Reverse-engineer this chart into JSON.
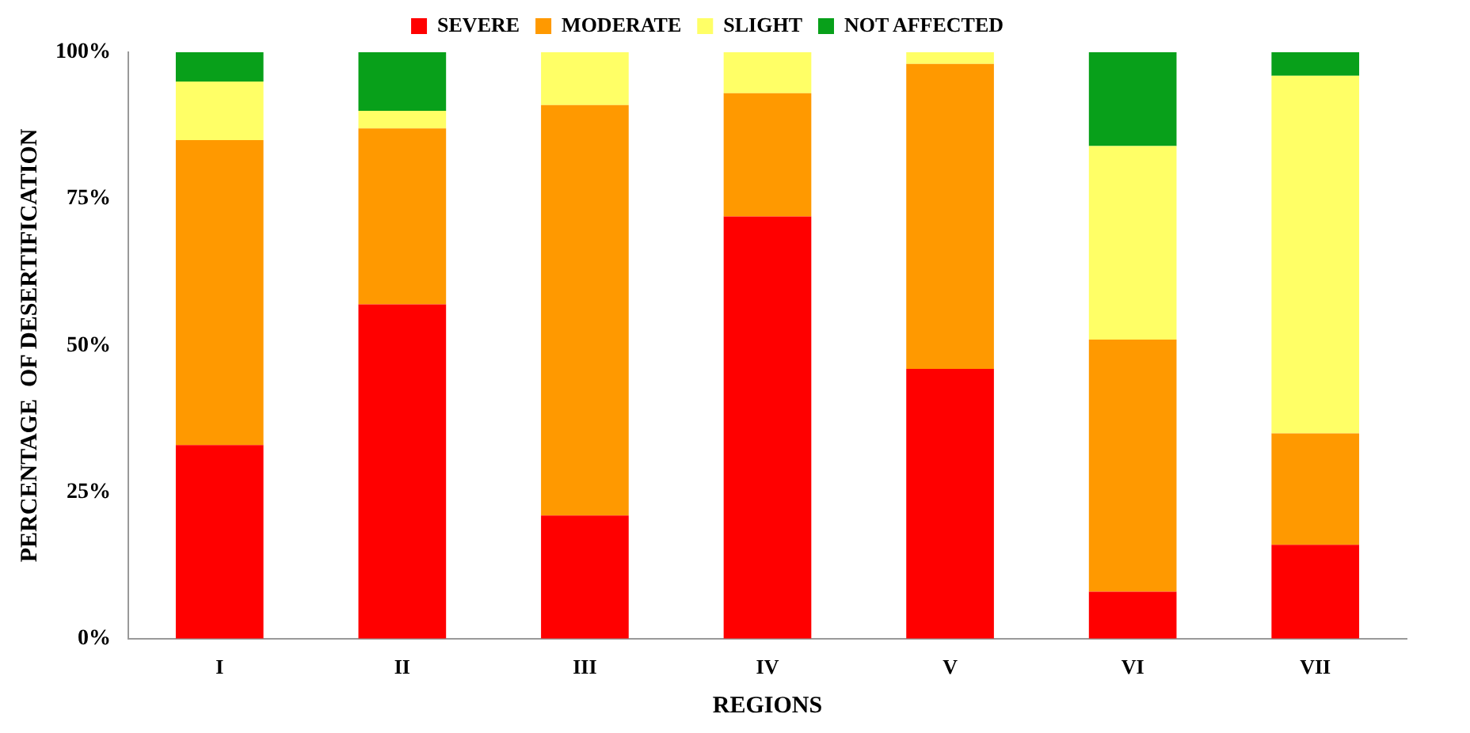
{
  "chart_data": {
    "type": "bar",
    "stacked": true,
    "xlabel": "REGIONS",
    "ylabel": "PERCENTAGE  OF DESERTIFICATION",
    "categories": [
      "I",
      "II",
      "III",
      "IV",
      "V",
      "VI",
      "VII"
    ],
    "series": [
      {
        "name": "SEVERE",
        "color": "#ff0000",
        "values": [
          33,
          57,
          21,
          72,
          46,
          8,
          16
        ]
      },
      {
        "name": "MODERATE",
        "color": "#ff9900",
        "values": [
          52,
          30,
          70,
          21,
          52,
          43,
          19
        ]
      },
      {
        "name": "SLIGHT",
        "color": "#ffff66",
        "values": [
          10,
          3,
          9,
          7,
          2,
          33,
          61
        ]
      },
      {
        "name": "NOT AFFECTED",
        "color": "#08a01a",
        "values": [
          5,
          10,
          0,
          0,
          0,
          16,
          4
        ]
      }
    ],
    "ylim": [
      0,
      100
    ],
    "yticks": [
      {
        "value": 0,
        "label": "0%"
      },
      {
        "value": 25,
        "label": "25%"
      },
      {
        "value": 50,
        "label": "50%"
      },
      {
        "value": 75,
        "label": "75%"
      },
      {
        "value": 100,
        "label": "100%"
      }
    ],
    "grid": false,
    "legend": "top"
  }
}
